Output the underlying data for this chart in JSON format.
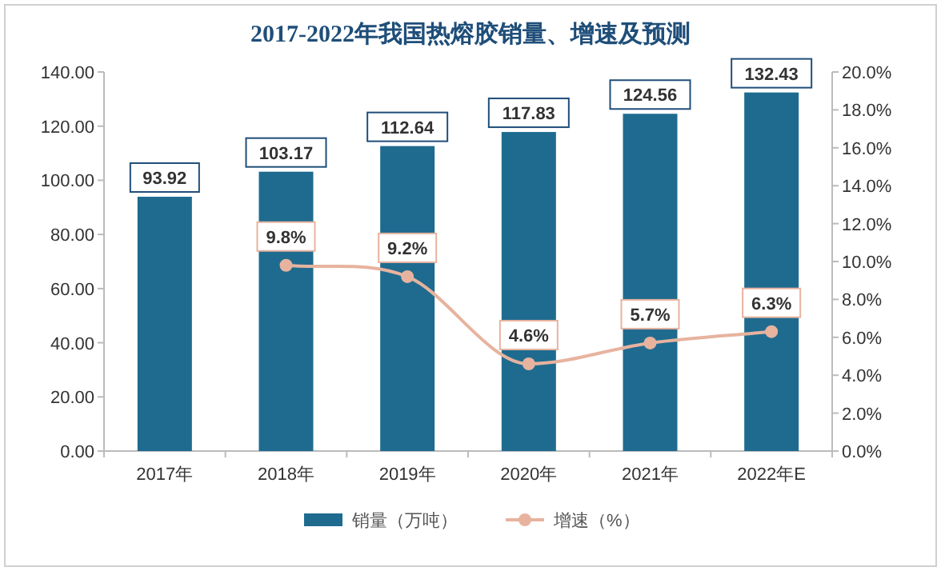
{
  "chart_data": {
    "type": "bar",
    "title": "2017-2022年我国热熔胶销量、增速及预测",
    "categories": [
      "2017年",
      "2018年",
      "2019年",
      "2020年",
      "2021年",
      "2022年E"
    ],
    "series": [
      {
        "name": "销量（万吨）",
        "color": "#1f6b8f",
        "values": [
          93.92,
          103.17,
          112.64,
          117.83,
          124.56,
          132.43
        ],
        "value_labels": [
          "93.92",
          "103.17",
          "112.64",
          "117.83",
          "124.56",
          "132.43"
        ]
      },
      {
        "name": "增速（%）",
        "type": "line",
        "axis": "y2",
        "color": "#e7b39f",
        "values": [
          null,
          9.8,
          9.2,
          4.6,
          5.7,
          6.3
        ],
        "value_labels": [
          null,
          "9.8%",
          "9.2%",
          "4.6%",
          "5.7%",
          "6.3%"
        ]
      }
    ],
    "marker": "circle",
    "ylim": [
      0,
      140
    ],
    "yticks": [
      {
        "value": 0,
        "label": "0.00"
      },
      {
        "value": 20,
        "label": "20.00"
      },
      {
        "value": 40,
        "label": "40.00"
      },
      {
        "value": 60,
        "label": "60.00"
      },
      {
        "value": 80,
        "label": "80.00"
      },
      {
        "value": 100,
        "label": "100.00"
      },
      {
        "value": 120,
        "label": "120.00"
      },
      {
        "value": 140,
        "label": "140.00"
      }
    ],
    "y2lim": [
      0,
      20
    ],
    "y2ticks": [
      {
        "value": 0,
        "label": "0.0%"
      },
      {
        "value": 2,
        "label": "2.0%"
      },
      {
        "value": 4,
        "label": "4.0%"
      },
      {
        "value": 6,
        "label": "6.0%"
      },
      {
        "value": 8,
        "label": "8.0%"
      },
      {
        "value": 10,
        "label": "10.0%"
      },
      {
        "value": 12,
        "label": "12.0%"
      },
      {
        "value": 14,
        "label": "14.0%"
      },
      {
        "value": 16,
        "label": "16.0%"
      },
      {
        "value": 18,
        "label": "18.0%"
      },
      {
        "value": 20,
        "label": "20.0%"
      }
    ],
    "legend": "bottom"
  }
}
